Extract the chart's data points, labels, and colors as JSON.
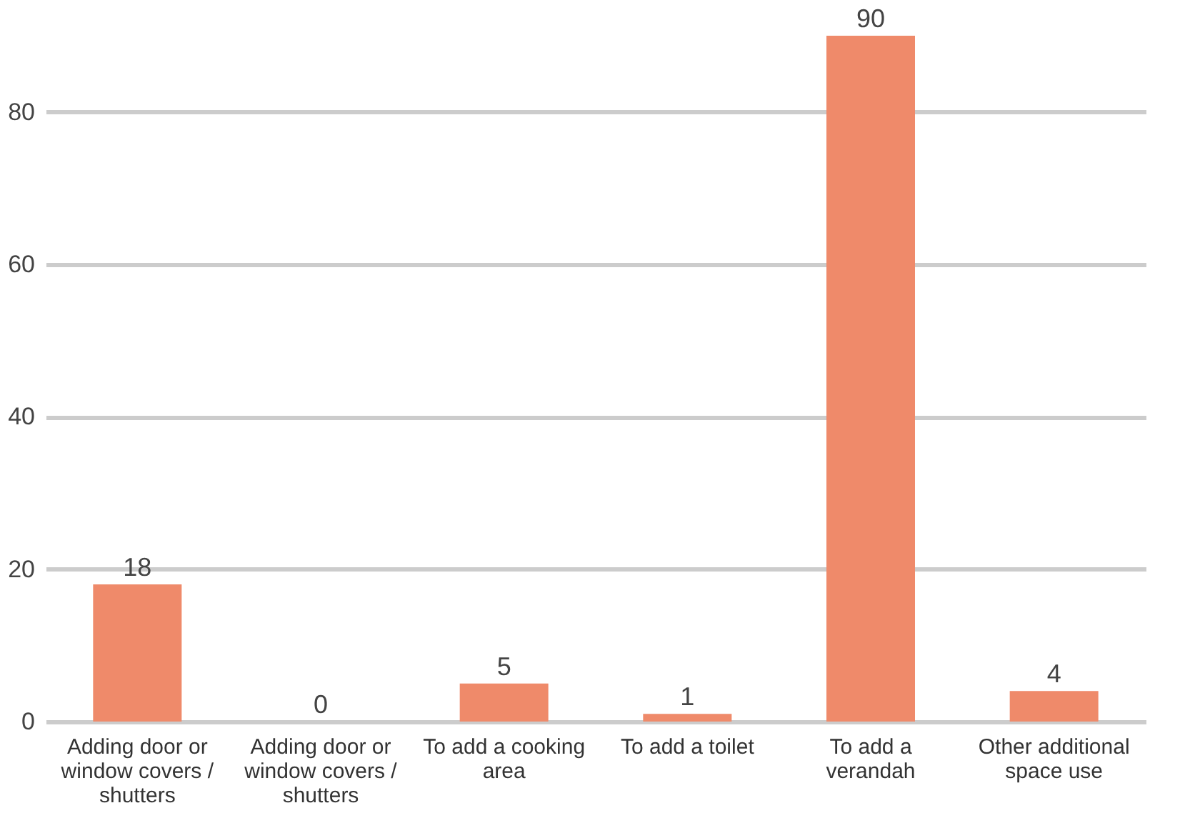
{
  "chart_data": {
    "type": "bar",
    "categories": [
      "Adding door or window covers / shutters",
      "Adding door or window covers / shutters",
      "To add a cooking area",
      "To add a toilet",
      "To add a verandah",
      "Other additional space use"
    ],
    "values": [
      18,
      0,
      5,
      1,
      90,
      4
    ],
    "color": "#ef8a6a",
    "ylim": [
      0,
      90
    ],
    "yticks": [
      0,
      20,
      40,
      60,
      80
    ],
    "grid": "y",
    "data_labels": true
  }
}
